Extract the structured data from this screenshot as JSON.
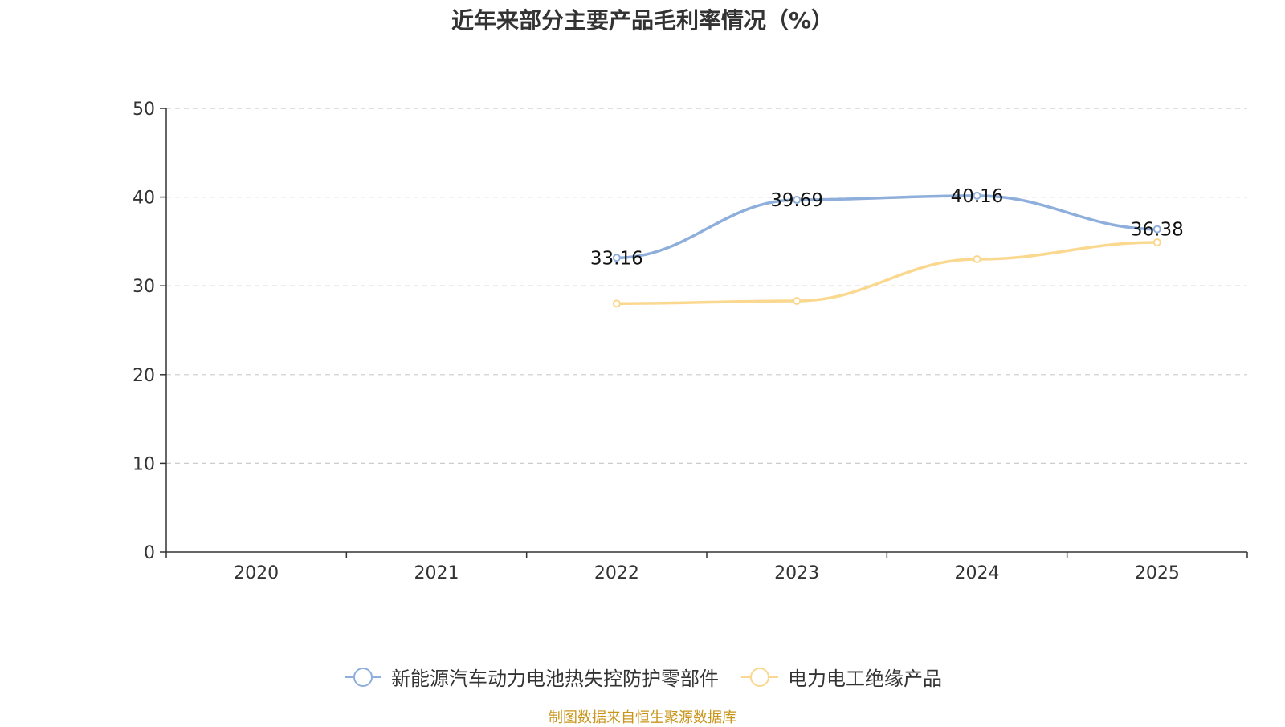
{
  "chart_data": {
    "type": "line",
    "title": "近年来部分主要产品毛利率情况（%）",
    "categories": [
      "2020",
      "2021",
      "2022",
      "2023",
      "2024",
      "2025"
    ],
    "ylim": [
      0,
      50
    ],
    "yticks": [
      0,
      10,
      20,
      30,
      40,
      50
    ],
    "grid": true,
    "legend_position": "bottom",
    "series": [
      {
        "name": "新能源汽车动力电池热失控防护零部件",
        "color": "#8eaedb",
        "values": [
          null,
          null,
          33.16,
          39.69,
          40.16,
          36.38
        ],
        "data_labels": [
          null,
          null,
          "33.16",
          "39.69",
          "40.16",
          "36.38"
        ]
      },
      {
        "name": "电力电工绝缘产品",
        "color": "#fbd88f",
        "values": [
          null,
          null,
          28.0,
          28.3,
          33.0,
          34.9
        ],
        "data_labels": [
          null,
          null,
          null,
          null,
          null,
          null
        ]
      }
    ]
  },
  "footer": {
    "source": "制图数据来自恒生聚源数据库"
  }
}
